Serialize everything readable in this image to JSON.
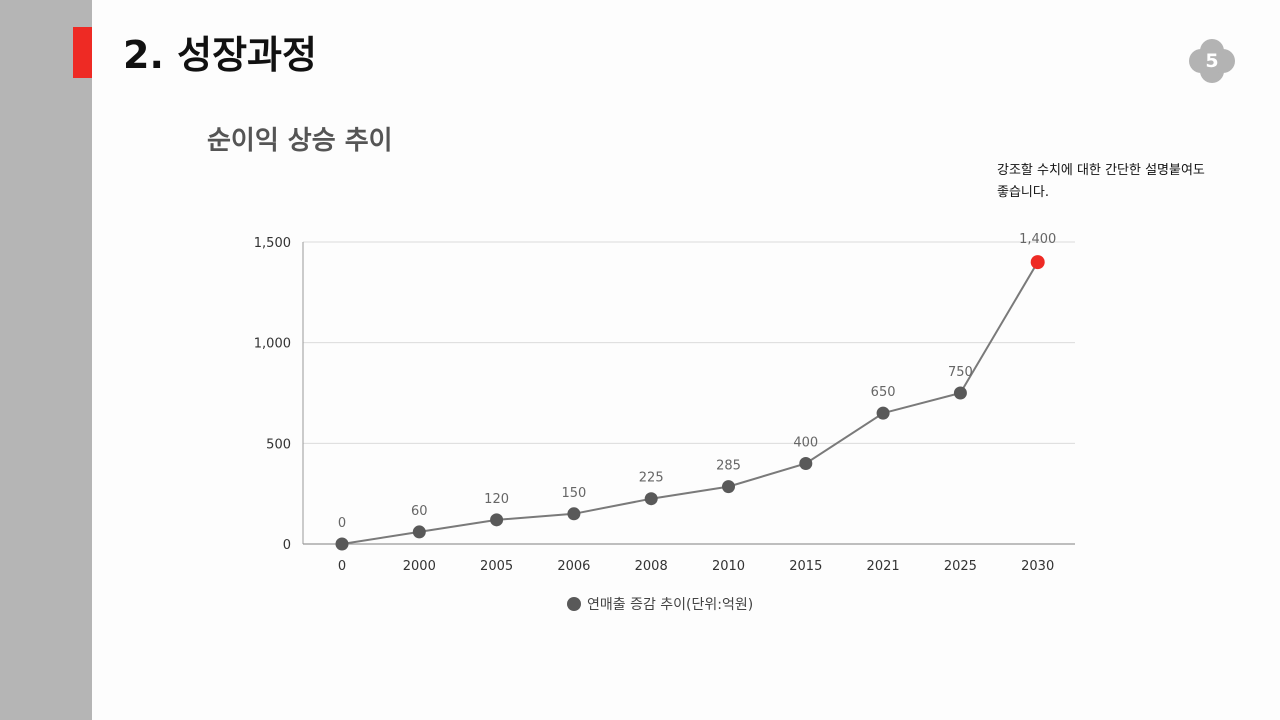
{
  "header": {
    "title": "2.  성장과정",
    "page_number": "5"
  },
  "subtitle": "순이익 상승 추이",
  "note": {
    "line1": "강조할 수치에 대한 간단한 설명붙여도",
    "line2": "좋습니다."
  },
  "colors": {
    "accent": "#ee2a24",
    "series": "#595959",
    "highlight": "#ee2a24",
    "sidebar": "#b5b5b5"
  },
  "chart_data": {
    "type": "line",
    "categories": [
      "0",
      "2000",
      "2005",
      "2006",
      "2008",
      "2010",
      "2015",
      "2021",
      "2025",
      "2030"
    ],
    "series": [
      {
        "name": "연매출 증감 추이(단위:억원)",
        "values": [
          0,
          60,
          120,
          150,
          225,
          285,
          400,
          650,
          750,
          1400
        ]
      }
    ],
    "data_labels": [
      "0",
      "60",
      "120",
      "150",
      "225",
      "285",
      "400",
      "650",
      "750",
      "1,400"
    ],
    "yticks": [
      0,
      500,
      1000,
      1500
    ],
    "ytick_labels": [
      "0",
      "500",
      "1,000",
      "1,500"
    ],
    "ylim": [
      0,
      1500
    ],
    "grid": true,
    "legend": "bottom",
    "highlight_index": 9
  }
}
